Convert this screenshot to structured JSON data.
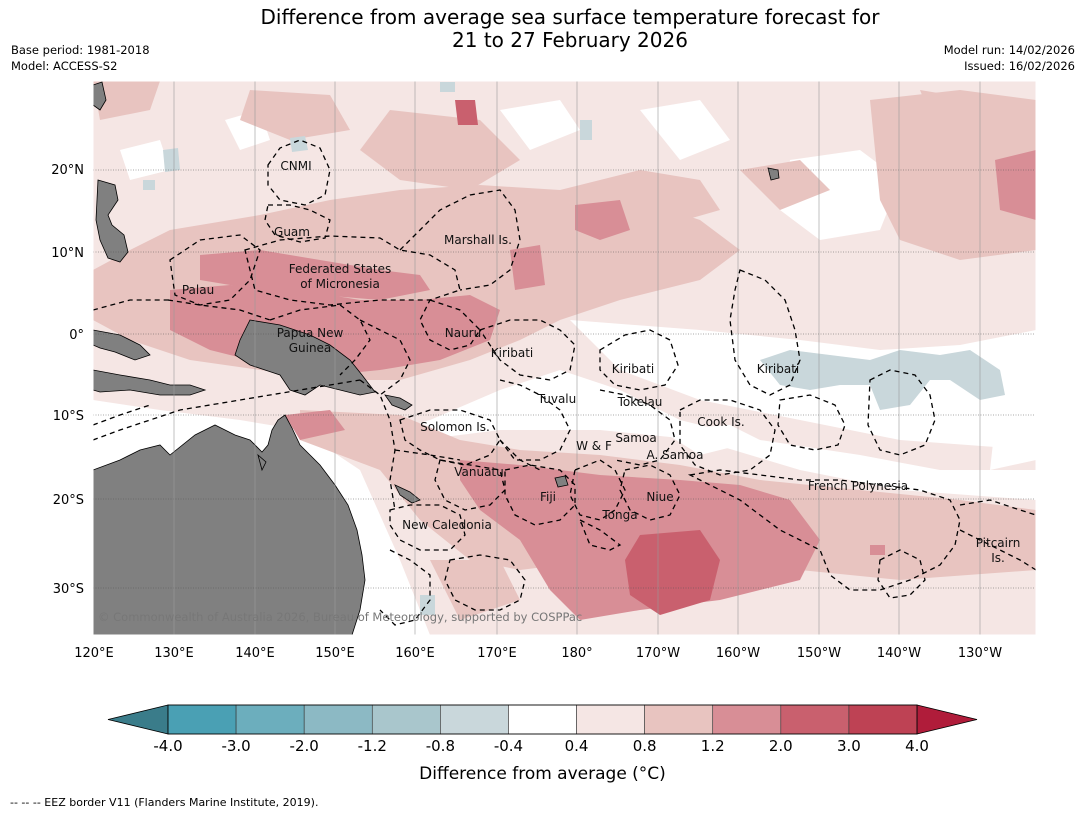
{
  "title": {
    "line1": "Difference from average sea surface temperature forecast for",
    "line2": "21 to 27 February 2026"
  },
  "meta": {
    "base_period": "Base period: 1981-2018",
    "model": "Model: ACCESS-S2",
    "model_run": "Model run: 14/02/2026",
    "issued": "Issued: 16/02/2026"
  },
  "map": {
    "lat_labels": [
      "20°N",
      "10°N",
      "0°",
      "10°S",
      "20°S",
      "30°S"
    ],
    "lon_labels": [
      "120°E",
      "130°E",
      "140°E",
      "150°E",
      "160°E",
      "170°E",
      "180°",
      "170°W",
      "160°W",
      "150°W",
      "140°W",
      "130°W"
    ],
    "copyright": "© Commonwealth of Australia 2026, Bureau of Meteorology, supported by COSPPac",
    "places": [
      {
        "name": "CNMI"
      },
      {
        "name": "Guam"
      },
      {
        "name": "Marshall Is."
      },
      {
        "name": "Federated States"
      },
      {
        "name": "of Micronesia"
      },
      {
        "name": "Palau"
      },
      {
        "name": "Papua New"
      },
      {
        "name": "Guinea"
      },
      {
        "name": "Nauru"
      },
      {
        "name": "Kiribati"
      },
      {
        "name": "Kiribati"
      },
      {
        "name": "Kiribati"
      },
      {
        "name": "Tuvalu"
      },
      {
        "name": "Tokelau"
      },
      {
        "name": "Cook Is."
      },
      {
        "name": "Solomon Is."
      },
      {
        "name": "W & F"
      },
      {
        "name": "Samoa"
      },
      {
        "name": "A. Samoa"
      },
      {
        "name": "Vanuatu"
      },
      {
        "name": "Fiji"
      },
      {
        "name": "Niue"
      },
      {
        "name": "Tonga"
      },
      {
        "name": "French Polynesia"
      },
      {
        "name": "New Caledonia"
      },
      {
        "name": "Pitcairn"
      },
      {
        "name": "Is."
      }
    ]
  },
  "colorbar": {
    "ticks": [
      "-4.0",
      "-3.0",
      "-2.0",
      "-1.2",
      "-0.8",
      "-0.4",
      "0.4",
      "0.8",
      "1.2",
      "2.0",
      "3.0",
      "4.0"
    ],
    "colors": [
      "#4aa0b4",
      "#6caebd",
      "#8cb9c4",
      "#a9c6cc",
      "#c9d7db",
      "#ffffff",
      "#f5e6e4",
      "#e8c4c0",
      "#d88e96",
      "#c9606e",
      "#be4254"
    ],
    "low_extend_color": "#3a7c8a",
    "high_extend_color": "#b01c3a",
    "label": "Difference from average (°C)"
  },
  "legend": {
    "eez": "--  --  -- EEZ border V11 (Flanders Marine Institute, 2019)."
  },
  "palette": {
    "land": "#808080",
    "light_pink": "#f5e6e4",
    "pink": "#e8c4c0",
    "rose": "#d88e96",
    "red": "#c9606e",
    "pale_blue": "#c9d7db"
  }
}
